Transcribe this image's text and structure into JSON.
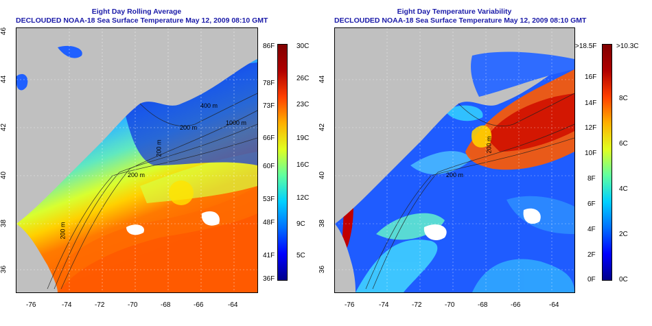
{
  "left_panel": {
    "title_line1": "Eight Day Rolling Average",
    "title_line2": "DECLOUDED NOAA-18 Sea Surface Temperature May 12, 2009 08:10 GMT",
    "lat_ticks": [
      "46",
      "44",
      "42",
      "40",
      "38",
      "36"
    ],
    "lon_ticks": [
      "-76",
      "-74",
      "-72",
      "-70",
      "-68",
      "-66",
      "-64"
    ],
    "contour_labels": [
      "200 m",
      "400 m",
      "1000 m",
      "200 m",
      "200 m",
      "200 m"
    ],
    "colorbar_left": [
      "86F",
      "78F",
      "73F",
      "66F",
      "60F",
      "53F",
      "48F",
      "41F",
      "36F"
    ],
    "colorbar_right": [
      "30C",
      "26C",
      "23C",
      "19C",
      "16C",
      "12C",
      "9C",
      "5C"
    ]
  },
  "right_panel": {
    "title_line1": "Eight Day Temperature Variability",
    "title_line2": "DECLOUDED NOAA-18 Sea Surface Temperature May 12, 2009 08:10 GMT",
    "lat_ticks": [
      "44",
      "42",
      "40",
      "38",
      "36"
    ],
    "lon_ticks": [
      "-76",
      "-74",
      "-72",
      "-70",
      "-68",
      "-66",
      "-64"
    ],
    "contour_labels": [
      "200 m",
      "200 m"
    ],
    "colorbar_left": [
      ">18.5F",
      "16F",
      "14F",
      "12F",
      "10F",
      "8F",
      "6F",
      "4F",
      "2F",
      "0F"
    ],
    "colorbar_right": [
      ">10.3C",
      "8C",
      "6C",
      "4C",
      "2C",
      "0C"
    ]
  },
  "colors": {
    "land": "#c0c0c0",
    "title_text": "#1a1aa8",
    "colormap": [
      "#00008a",
      "#0000ff",
      "#0070ff",
      "#00d0ff",
      "#60ffa0",
      "#e0ff20",
      "#ffb000",
      "#ff4000",
      "#b00000",
      "#800000"
    ]
  }
}
